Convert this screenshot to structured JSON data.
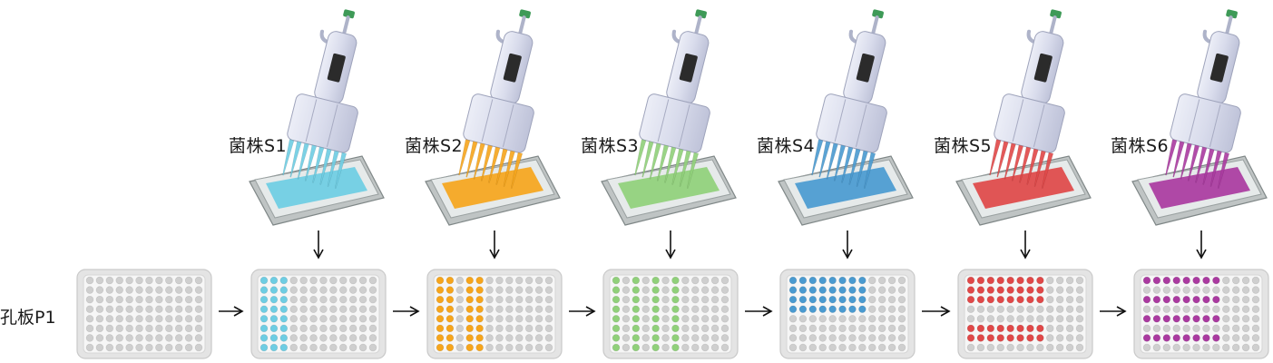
{
  "row_label": "孔板P1",
  "colors": {
    "empty_well": "#cfcfcf",
    "plate_frame": "#e4e4e4",
    "arrow": "#111111",
    "pipette_body": "#d7d9ea",
    "pipette_cap": "#3e9a57"
  },
  "strains": [
    {
      "label": "菌株S1",
      "color": "#6ecde3",
      "filled_columns": [
        1,
        2,
        3
      ],
      "filled_rows": [
        1,
        2,
        3,
        4,
        5,
        6,
        7,
        8
      ]
    },
    {
      "label": "菌株S2",
      "color": "#f6a51c",
      "filled_columns": [
        1,
        2,
        4,
        5
      ],
      "filled_rows": [
        1,
        2,
        3,
        4,
        5,
        6,
        7,
        8
      ]
    },
    {
      "label": "菌株S3",
      "color": "#90d07a",
      "filled_columns": [
        1,
        3,
        5,
        7
      ],
      "filled_rows": [
        1,
        2,
        3,
        4,
        5,
        6,
        7,
        8
      ]
    },
    {
      "label": "菌株S4",
      "color": "#4a9ad0",
      "filled_columns": [
        1,
        2,
        3,
        4,
        5,
        6,
        7,
        8
      ],
      "filled_rows": [
        1,
        2,
        3,
        4
      ]
    },
    {
      "label": "菌株S5",
      "color": "#e04848",
      "filled_columns": [
        1,
        2,
        3,
        4,
        5,
        6,
        7,
        8
      ],
      "filled_rows": [
        1,
        2,
        3,
        6,
        7
      ]
    },
    {
      "label": "菌株S6",
      "color": "#aa3aa0",
      "filled_columns": [
        1,
        2,
        3,
        4,
        5,
        6,
        7,
        8
      ],
      "filled_rows": [
        1,
        3,
        5,
        7
      ]
    }
  ]
}
